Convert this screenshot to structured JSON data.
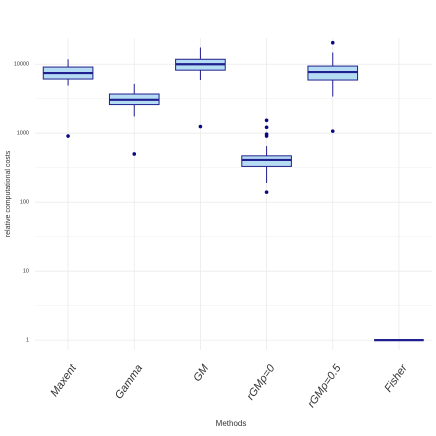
{
  "chart_data": {
    "type": "box",
    "x_label": "Methods",
    "y_label": "relative computational costs",
    "categories": [
      "Maxent",
      "Gamma",
      "GM",
      "rGMρ=0",
      "rGMρ=0.5",
      "Fisher"
    ],
    "boxes": [
      {
        "whisker_low": 4900,
        "q1": 6100,
        "median": 7450,
        "q3": 9100,
        "whisker_high": 11800,
        "outliers": [
          910
        ]
      },
      {
        "whisker_low": 1750,
        "q1": 2600,
        "median": 3050,
        "q3": 3700,
        "whisker_high": 5200,
        "outliers": [
          500
        ]
      },
      {
        "whisker_low": 5900,
        "q1": 8200,
        "median": 10000,
        "q3": 11800,
        "whisker_high": 17500,
        "outliers": [
          1250
        ]
      },
      {
        "whisker_low": 190,
        "q1": 330,
        "median": 410,
        "q3": 470,
        "whisker_high": 650,
        "outliers": [
          1540,
          1220,
          970,
          910,
          140
        ]
      },
      {
        "whisker_low": 3400,
        "q1": 5900,
        "median": 7700,
        "q3": 9400,
        "whisker_high": 14800,
        "outliers": [
          20500,
          1070
        ]
      },
      {
        "whisker_low": 1,
        "q1": 1,
        "median": 1,
        "q3": 1,
        "whisker_high": 1,
        "outliers": []
      }
    ],
    "fill": "#b5dcf2",
    "color": "#1f1f8f",
    "outlier_color": "#0a0a80",
    "ylim": [
      0.72,
      24000
    ],
    "yticks": [
      1,
      10,
      100,
      1000,
      10000
    ],
    "log_scale": true,
    "grid": true
  }
}
